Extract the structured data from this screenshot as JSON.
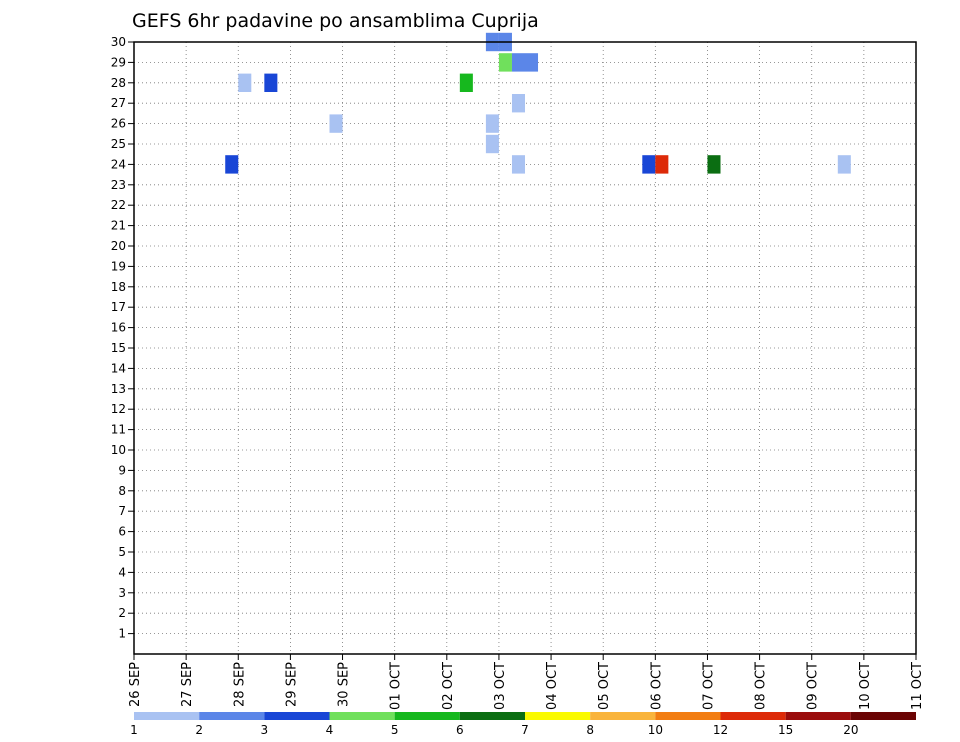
{
  "chart_data": {
    "type": "heatmap",
    "title": "GEFS 6hr padavine po ansamblima Cuprija",
    "y_ticks": [
      "1",
      "2",
      "3",
      "4",
      "5",
      "6",
      "7",
      "8",
      "9",
      "10",
      "11",
      "12",
      "13",
      "14",
      "15",
      "16",
      "17",
      "18",
      "19",
      "20",
      "21",
      "22",
      "23",
      "24",
      "25",
      "26",
      "27",
      "28",
      "29",
      "30"
    ],
    "x_ticks": [
      "26 SEP",
      "27 SEP",
      "28 SEP",
      "29 SEP",
      "30 SEP",
      "01 OCT",
      "02 OCT",
      "03 OCT",
      "04 OCT",
      "05 OCT",
      "06 OCT",
      "07 OCT",
      "08 OCT",
      "09 OCT",
      "10 OCT",
      "11 OCT"
    ],
    "x_range_days": [
      0,
      15
    ],
    "y_range": [
      0,
      30
    ],
    "grid": true,
    "legend_position": "bottom",
    "color_scale": {
      "labels": [
        "1",
        "2",
        "3",
        "4",
        "5",
        "6",
        "7",
        "8",
        "10",
        "12",
        "15",
        "20"
      ],
      "colors": [
        "#a9c2f2",
        "#5b86e8",
        "#1946d6",
        "#70e05c",
        "#16b81e",
        "#0b6e12",
        "#fafa00",
        "#f9b43c",
        "#f27d12",
        "#dd2a08",
        "#9a0c0c",
        "#6b0404"
      ]
    },
    "cells": [
      {
        "member": 30,
        "day": "2 Oct 18z",
        "color": "#5b86e8"
      },
      {
        "member": 30,
        "day": "3 Oct 00z",
        "color": "#5b86e8"
      },
      {
        "member": 29,
        "day": "3 Oct 00z",
        "color": "#70e05c"
      },
      {
        "member": 29,
        "day": "3 Oct 06z",
        "color": "#5b86e8"
      },
      {
        "member": 29,
        "day": "3 Oct 12z",
        "color": "#5b86e8"
      },
      {
        "member": 28,
        "day": "28 Sep 00z",
        "color": "#a9c2f2"
      },
      {
        "member": 28,
        "day": "28 Sep 12z",
        "color": "#1946d6"
      },
      {
        "member": 28,
        "day": "2 Oct 06z",
        "color": "#16b81e"
      },
      {
        "member": 27,
        "day": "3 Oct 06z",
        "color": "#a9c2f2"
      },
      {
        "member": 26,
        "day": "29 Sep 18z",
        "color": "#a9c2f2"
      },
      {
        "member": 26,
        "day": "2 Oct 18z",
        "color": "#a9c2f2"
      },
      {
        "member": 25,
        "day": "2 Oct 18z",
        "color": "#a9c2f2"
      },
      {
        "member": 24,
        "day": "27 Sep 18z",
        "color": "#1946d6"
      },
      {
        "member": 24,
        "day": "3 Oct 06z",
        "color": "#a9c2f2"
      },
      {
        "member": 24,
        "day": "5 Oct 18z",
        "color": "#1946d6"
      },
      {
        "member": 24,
        "day": "6 Oct 00z",
        "color": "#dd2a08"
      },
      {
        "member": 24,
        "day": "7 Oct 00z",
        "color": "#0b6e12"
      },
      {
        "member": 24,
        "day": "9 Oct 12z",
        "color": "#a9c2f2"
      }
    ]
  }
}
